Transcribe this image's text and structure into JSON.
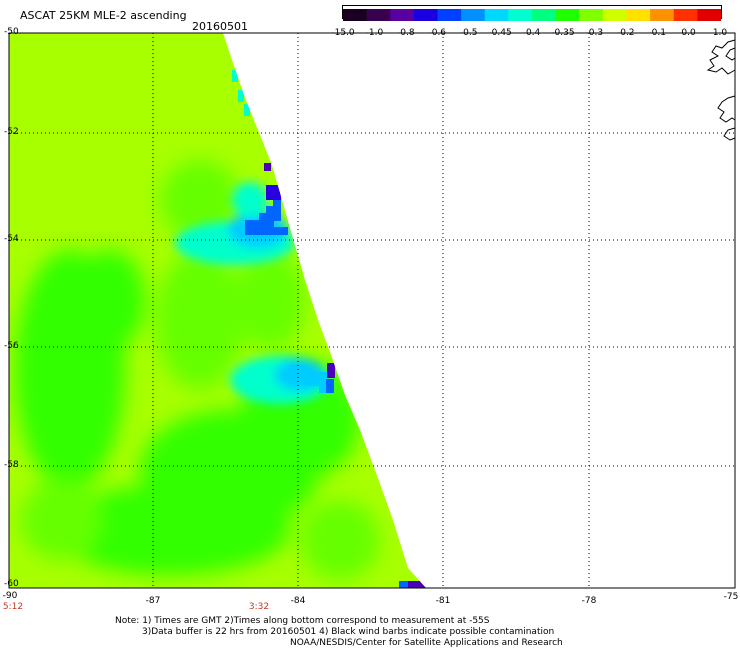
{
  "header": {
    "title": "ASCAT 25KM MLE-2 ascending",
    "date": "20160501"
  },
  "colorbar": {
    "labels": [
      "-15.0",
      "-1.0",
      "-0.8",
      "-0.6",
      "-0.5",
      "-0.45",
      "-0.4",
      "-0.35",
      "-0.3",
      "-0.2",
      "-0.1",
      "0.0",
      "1.0"
    ],
    "colors": [
      "#1a0020",
      "#3a0050",
      "#5a00a0",
      "#1a00e0",
      "#0040ff",
      "#0090ff",
      "#00d8ff",
      "#00ffd0",
      "#00ff80",
      "#20ff00",
      "#80ff00",
      "#d0ff00",
      "#ffe000",
      "#ff9000",
      "#ff3000",
      "#e00000"
    ]
  },
  "map": {
    "lat_labels": [
      "-50",
      "-52",
      "-54",
      "-56",
      "-58",
      "-60"
    ],
    "lon_labels": [
      "-90",
      "-87",
      "-84",
      "-81",
      "-78",
      "-75"
    ],
    "time_labels": [
      "5:12",
      "3:32"
    ],
    "colors": {
      "background_field": "#a8ff00",
      "green_field": "#33ff00",
      "mid_green": "#66ff00",
      "cyan": "#00ffcc",
      "light_blue": "#00ccff",
      "blue": "#0066ff",
      "deep_blue": "#2a00e0",
      "purple": "#4b00b8"
    }
  },
  "footer": {
    "line1": "Note: 1) Times are GMT 2)Times along bottom correspond to measurement at -55S",
    "line2": "3)Data buffer is 22 hrs from 20160501 4) Black wind barbs indicate possible contamination",
    "line3": "NOAA/NESDIS/Center for Satellite Applications and Research"
  }
}
